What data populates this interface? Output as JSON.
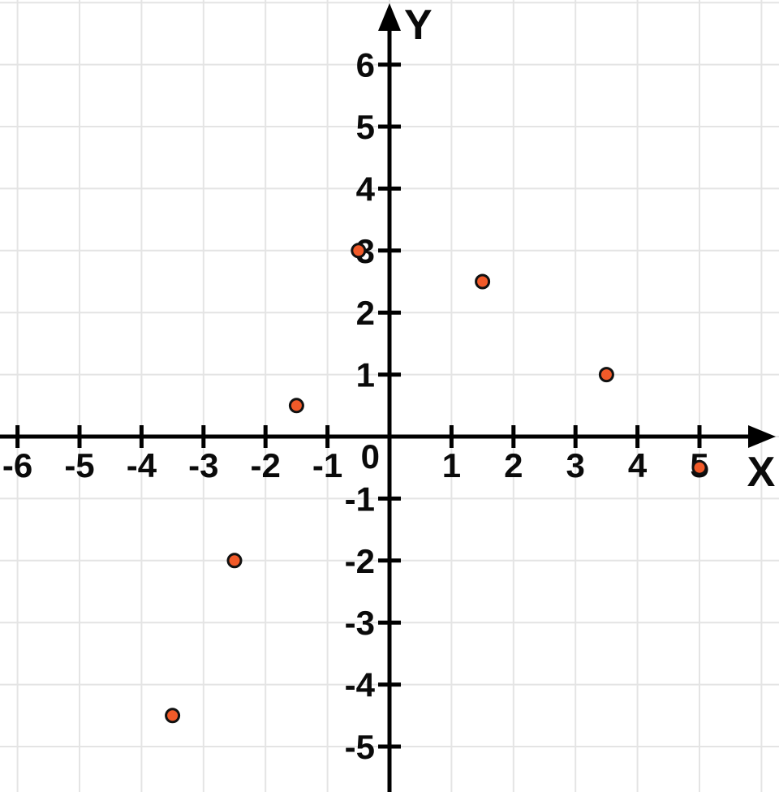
{
  "chart_data": {
    "type": "scatter",
    "title": "",
    "xlabel": "X",
    "ylabel": "Y",
    "origin_label": "0",
    "points": [
      {
        "x": -0.5,
        "y": 3
      },
      {
        "x": 1.5,
        "y": 2.5
      },
      {
        "x": 3.5,
        "y": 1
      },
      {
        "x": 5,
        "y": -0.5
      },
      {
        "x": -1.5,
        "y": 0.5
      },
      {
        "x": -2.5,
        "y": -2
      },
      {
        "x": -3.5,
        "y": -4.5
      }
    ],
    "x_ticks": [
      -6,
      -5,
      -4,
      -3,
      -2,
      -1,
      1,
      2,
      3,
      4,
      5
    ],
    "y_ticks": [
      6,
      5,
      4,
      3,
      2,
      1,
      -1,
      -2,
      -3,
      -4,
      -5
    ],
    "grid_x_lines": [
      -6,
      -5,
      -4,
      -3,
      -2,
      -1,
      0,
      1,
      2,
      3,
      4,
      5,
      6
    ],
    "grid_y_lines": [
      -5,
      -4,
      -3,
      -2,
      -1,
      0,
      1,
      2,
      3,
      4,
      5,
      6,
      7
    ],
    "xlim": [
      -6.2827,
      6.2827
    ],
    "ylim": [
      -5.733,
      7.0419
    ],
    "grid": true,
    "legend": null,
    "colors": {
      "point_fill": "#f15a29",
      "point_stroke": "#111111",
      "grid": "#e4e4e4",
      "axis": "#000000",
      "background": "#ffffff"
    }
  }
}
